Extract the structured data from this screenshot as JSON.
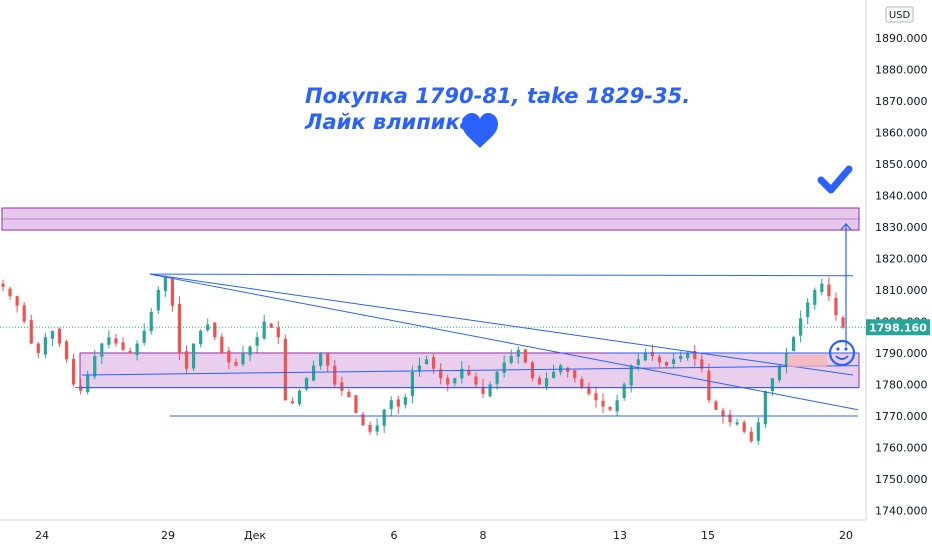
{
  "chart_data": {
    "type": "candlestick",
    "currency": "USD",
    "ylim": [
      1737,
      1902
    ],
    "y_ticks": [
      1740,
      1750,
      1760,
      1770,
      1780,
      1790,
      1800,
      1810,
      1820,
      1830,
      1840,
      1850,
      1860,
      1870,
      1880,
      1890
    ],
    "y_tick_labels": [
      "1740.000",
      "1750.000",
      "1760.000",
      "1770.000",
      "1780.000",
      "1790.000",
      "1800.000",
      "1810.000",
      "1820.000",
      "1830.000",
      "1840.000",
      "1850.000",
      "1860.000",
      "1870.000",
      "1880.000",
      "1890.000"
    ],
    "x_tick_labels": [
      "24",
      "29",
      "Дек",
      "6",
      "8",
      "13",
      "15",
      "20"
    ],
    "current_price": 1798.16,
    "current_price_label": "1798.160",
    "colors": {
      "up": "#26a69a",
      "down": "#ef5350",
      "annotation": "#2962ff",
      "zone": "#9c27b0"
    },
    "annotation_lines": [
      "Покупка 1790-81, take 1829-35.",
      "Лайк влипика"
    ],
    "zones": [
      {
        "name": "target",
        "from": 1829,
        "to": 1836
      },
      {
        "name": "buy",
        "from": 1779,
        "to": 1790
      }
    ],
    "series_close": [
      1811,
      1808,
      1805,
      1800,
      1793,
      1790,
      1795,
      1797,
      1793,
      1788,
      1780,
      1778,
      1783,
      1789,
      1793,
      1795,
      1793,
      1791,
      1790,
      1793,
      1797,
      1803,
      1810,
      1814,
      1805,
      1790,
      1785,
      1793,
      1797,
      1799,
      1795,
      1790,
      1787,
      1786,
      1790,
      1792,
      1795,
      1800,
      1798,
      1795,
      1775,
      1774,
      1778,
      1782,
      1786,
      1790,
      1786,
      1780,
      1778,
      1776,
      1771,
      1767,
      1765,
      1767,
      1772,
      1775,
      1773,
      1776,
      1784,
      1786,
      1788,
      1785,
      1782,
      1780,
      1782,
      1785,
      1783,
      1780,
      1777,
      1780,
      1784,
      1787,
      1789,
      1791,
      1787,
      1782,
      1780,
      1782,
      1784,
      1786,
      1784,
      1782,
      1779,
      1777,
      1775,
      1773,
      1772,
      1775,
      1780,
      1786,
      1788,
      1790,
      1789,
      1787,
      1786,
      1788,
      1789,
      1790,
      1788,
      1785,
      1775,
      1772,
      1770,
      1768,
      1768,
      1765,
      1762,
      1768,
      1778,
      1782,
      1786,
      1790,
      1795,
      1801,
      1806,
      1810,
      1812,
      1808,
      1802,
      1798
    ]
  }
}
